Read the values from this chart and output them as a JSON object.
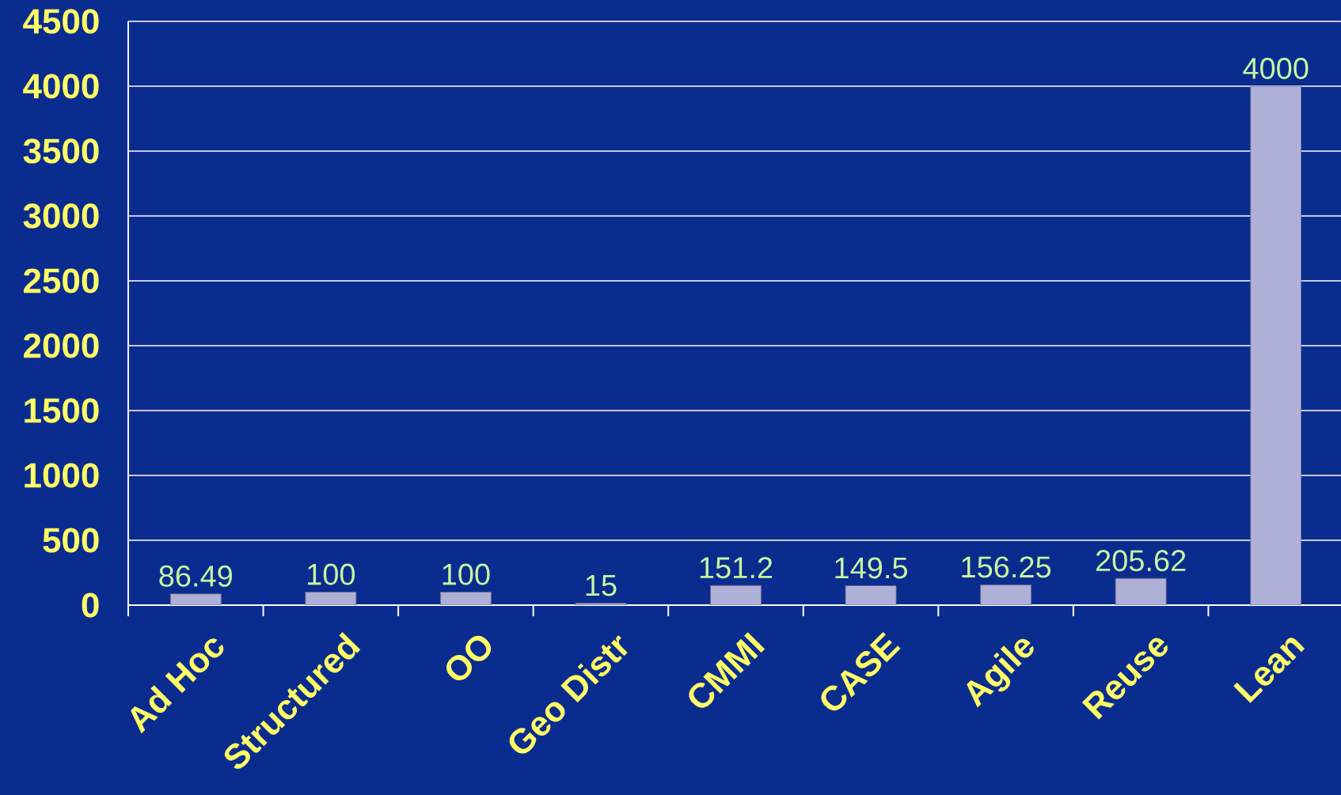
{
  "chart_data": {
    "type": "bar",
    "categories": [
      "Ad Hoc",
      "Structured",
      "OO",
      "Geo Distr",
      "CMMI",
      "CASE",
      "Agile",
      "Reuse",
      "Lean"
    ],
    "values": [
      86.49,
      100,
      100,
      15,
      151.2,
      149.5,
      156.25,
      205.62,
      4000
    ],
    "color": "#aeb0d8",
    "ylim": [
      0,
      4500
    ],
    "yticks": [
      0,
      500,
      1000,
      1500,
      2000,
      2500,
      3000,
      3500,
      4000,
      4500
    ],
    "grid": "y",
    "data_labels": true
  }
}
